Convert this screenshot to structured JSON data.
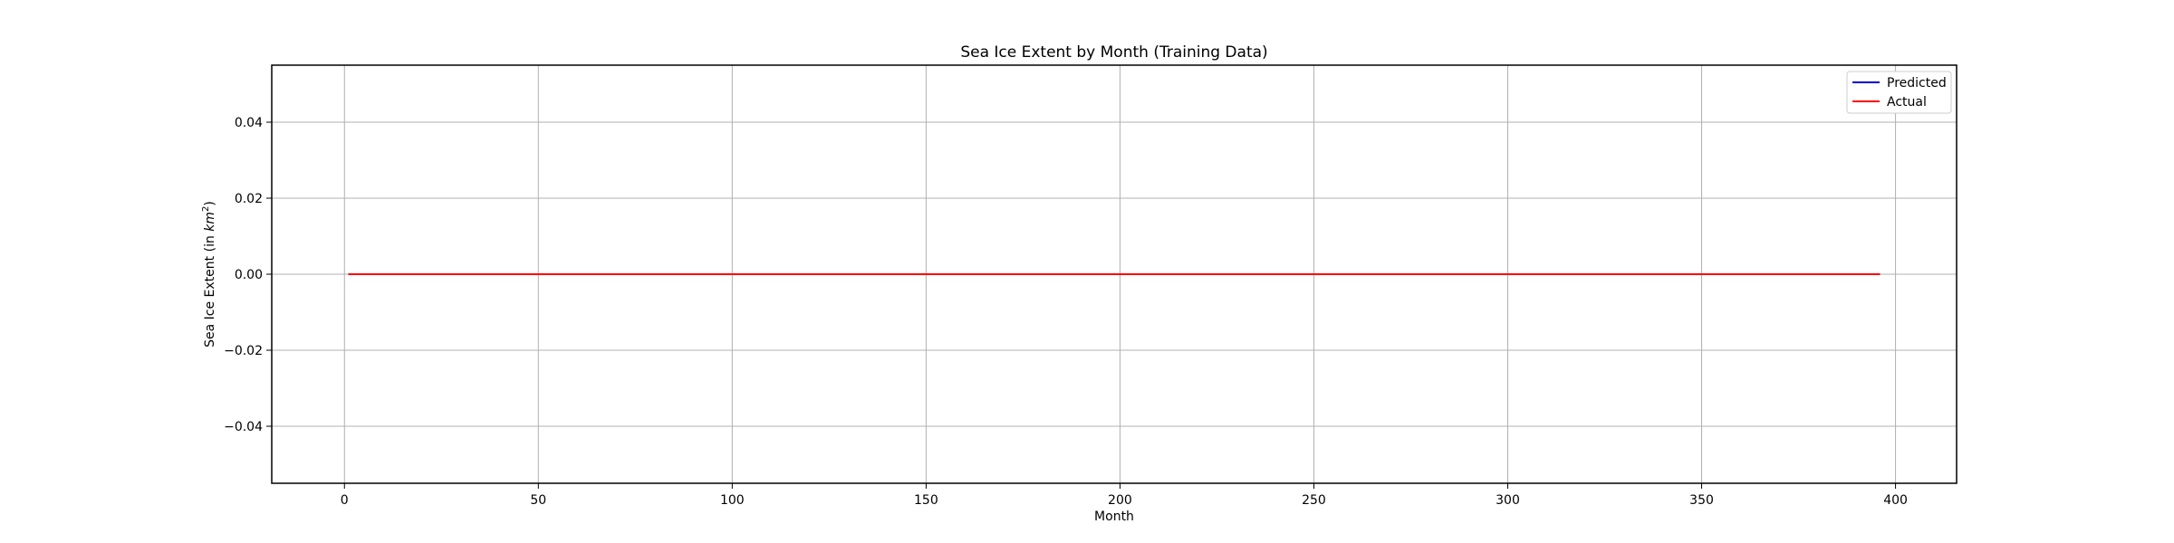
{
  "chart_data": {
    "type": "line",
    "title": "Sea Ice Extent by Month (Training Data)",
    "xlabel": "Month",
    "ylabel_prefix": "Sea Ice Extent (in ",
    "ylabel_unit": "km",
    "ylabel_exp": "2",
    "ylabel_suffix": ")",
    "xlim": [
      -18.75,
      415.75
    ],
    "ylim": [
      -0.055,
      0.055
    ],
    "xticks": [
      0,
      50,
      100,
      150,
      200,
      250,
      300,
      350,
      400
    ],
    "yticks": [
      -0.04,
      -0.02,
      0.0,
      0.02,
      0.04
    ],
    "ytick_labels": [
      "−0.04",
      "−0.02",
      "0.00",
      "0.02",
      "0.04"
    ],
    "grid": true,
    "legend_position": "top-right",
    "series": [
      {
        "name": "Predicted",
        "color": "#0000cc",
        "x": [
          1,
          396
        ],
        "y": [
          0,
          0
        ]
      },
      {
        "name": "Actual",
        "color": "#ff0000",
        "x": [
          1,
          396
        ],
        "y": [
          0,
          0
        ]
      }
    ]
  }
}
